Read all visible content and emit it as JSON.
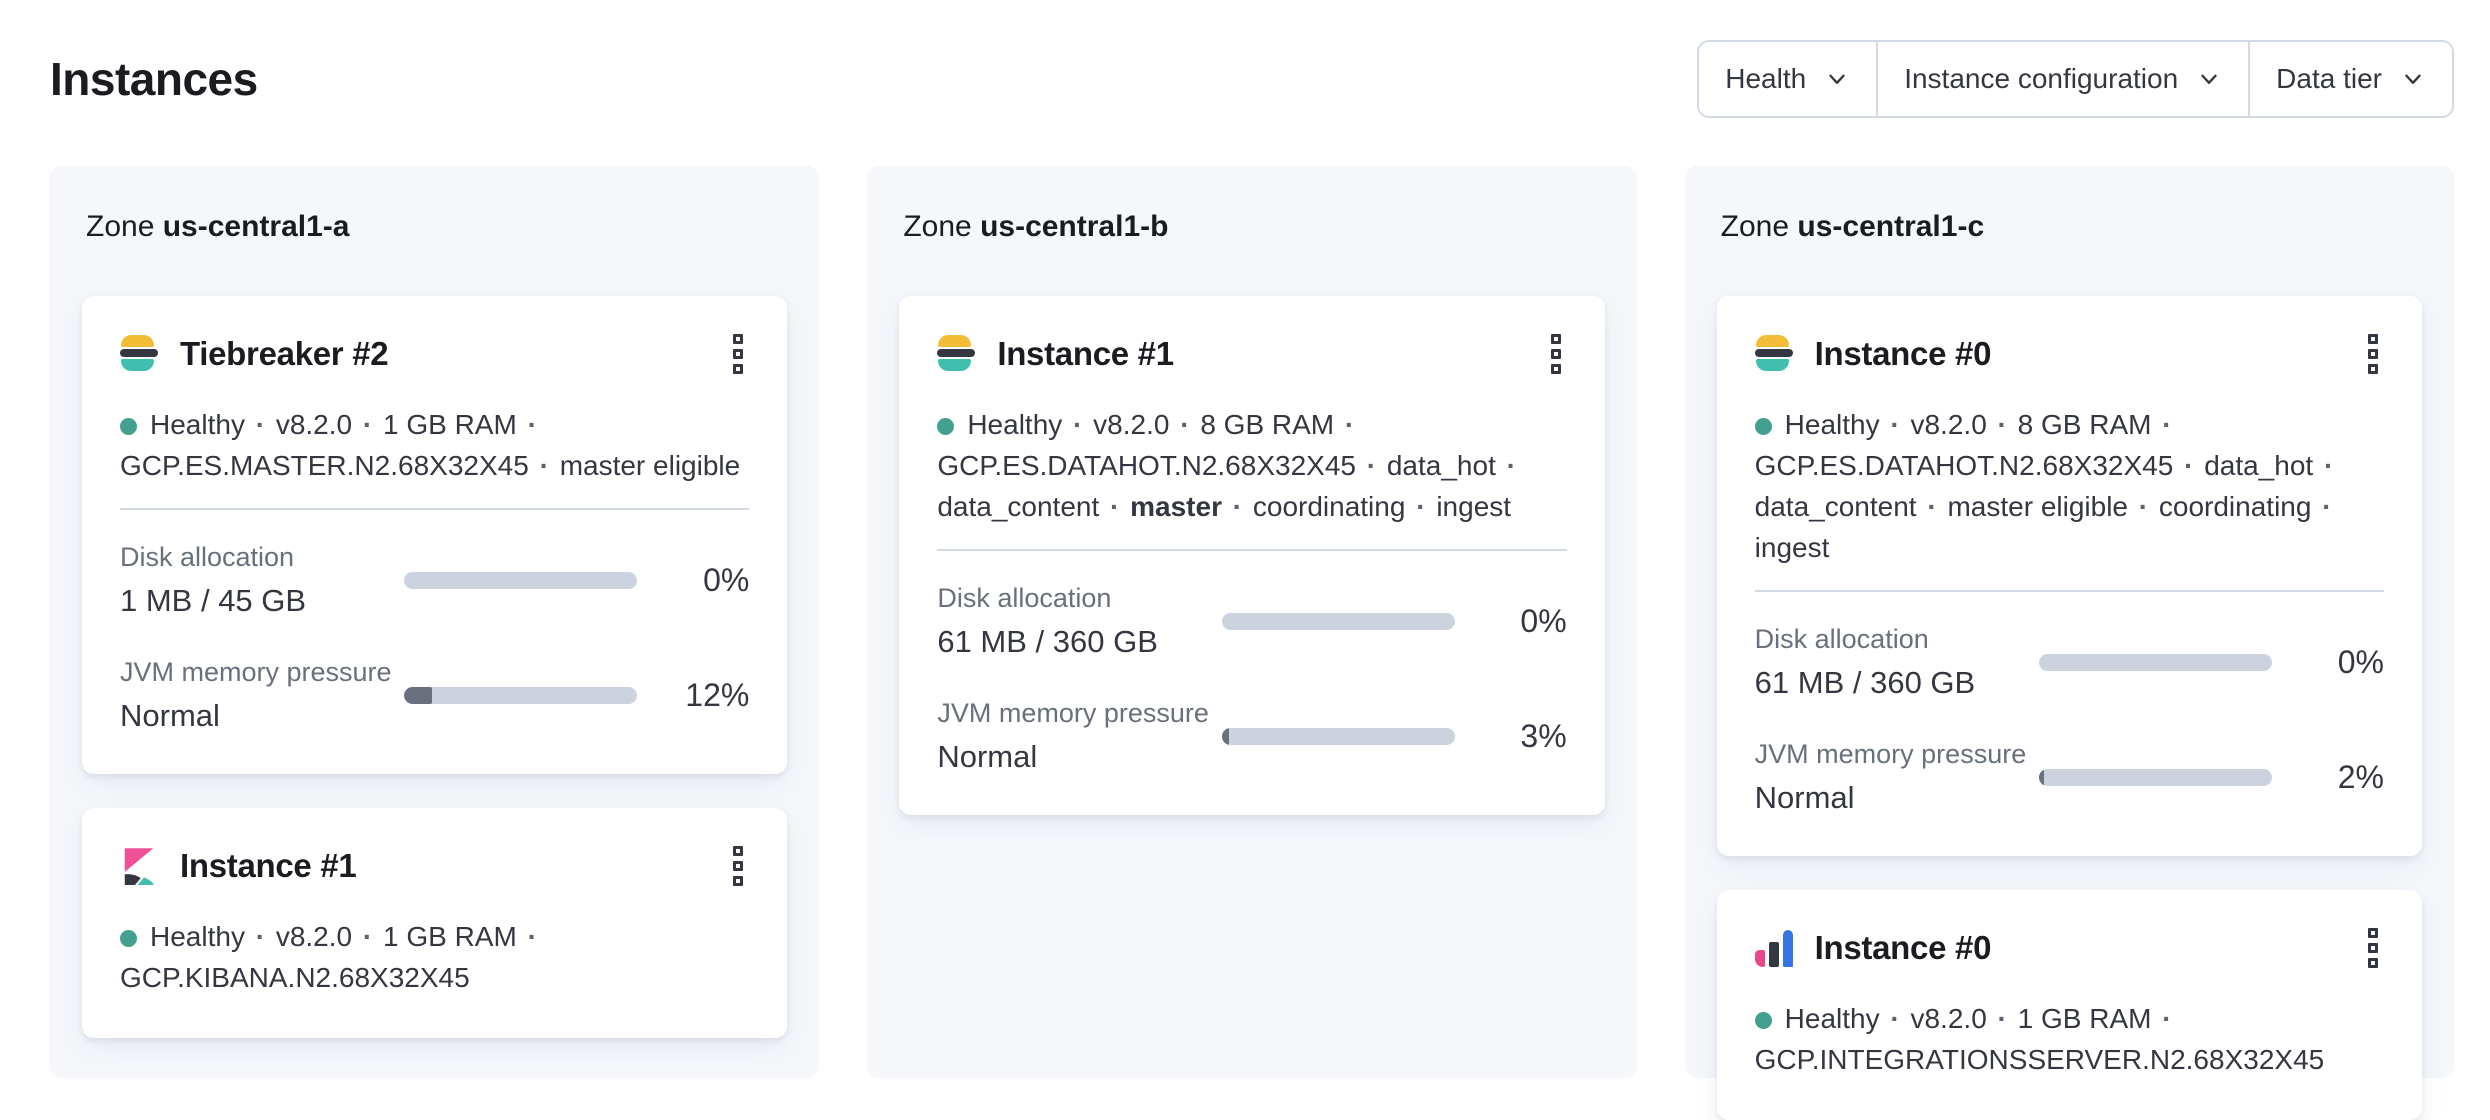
{
  "header": {
    "title": "Instances"
  },
  "filters": [
    {
      "id": "health",
      "label": "Health"
    },
    {
      "id": "instance-configuration",
      "label": "Instance configuration"
    },
    {
      "id": "data-tier",
      "label": "Data tier"
    }
  ],
  "ui": {
    "meta_separator": "·"
  },
  "zones": [
    {
      "label": "Zone",
      "name": "us-central1-a",
      "cards": [
        {
          "logo": "elasticsearch-logo",
          "title": "Tiebreaker #2",
          "health": "Healthy",
          "meta": [
            {
              "text": "Healthy"
            },
            {
              "text": "v8.2.0"
            },
            {
              "text": "1 GB RAM"
            },
            {
              "text": "GCP.ES.MASTER.N2.68X32X45"
            },
            {
              "text": "master eligible"
            }
          ],
          "metrics": [
            {
              "label": "Disk allocation",
              "value": "1 MB / 45 GB",
              "percent_label": "0%",
              "percent": 0
            },
            {
              "label": "JVM memory pressure",
              "value": "Normal",
              "percent_label": "12%",
              "percent": 12
            }
          ]
        },
        {
          "logo": "kibana-logo",
          "title": "Instance #1",
          "health": "Healthy",
          "meta": [
            {
              "text": "Healthy"
            },
            {
              "text": "v8.2.0"
            },
            {
              "text": "1 GB RAM"
            },
            {
              "text": "GCP.KIBANA.N2.68X32X45"
            }
          ],
          "metrics": []
        }
      ]
    },
    {
      "label": "Zone",
      "name": "us-central1-b",
      "cards": [
        {
          "logo": "elasticsearch-logo",
          "title": "Instance #1",
          "health": "Healthy",
          "meta": [
            {
              "text": "Healthy"
            },
            {
              "text": "v8.2.0"
            },
            {
              "text": "8 GB RAM"
            },
            {
              "text": "GCP.ES.DATAHOT.N2.68X32X45"
            },
            {
              "text": "data_hot"
            },
            {
              "text": "data_content"
            },
            {
              "text": "master",
              "bold": true
            },
            {
              "text": "coordinating"
            },
            {
              "text": "ingest"
            }
          ],
          "metrics": [
            {
              "label": "Disk allocation",
              "value": "61 MB / 360 GB",
              "percent_label": "0%",
              "percent": 0
            },
            {
              "label": "JVM memory pressure",
              "value": "Normal",
              "percent_label": "3%",
              "percent": 3
            }
          ]
        }
      ]
    },
    {
      "label": "Zone",
      "name": "us-central1-c",
      "cards": [
        {
          "logo": "elasticsearch-logo",
          "title": "Instance #0",
          "health": "Healthy",
          "meta": [
            {
              "text": "Healthy"
            },
            {
              "text": "v8.2.0"
            },
            {
              "text": "8 GB RAM"
            },
            {
              "text": "GCP.ES.DATAHOT.N2.68X32X45"
            },
            {
              "text": "data_hot"
            },
            {
              "text": "data_content"
            },
            {
              "text": "master eligible"
            },
            {
              "text": "coordinating"
            },
            {
              "text": "ingest"
            }
          ],
          "metrics": [
            {
              "label": "Disk allocation",
              "value": "61 MB / 360 GB",
              "percent_label": "0%",
              "percent": 0
            },
            {
              "label": "JVM memory pressure",
              "value": "Normal",
              "percent_label": "2%",
              "percent": 2
            }
          ]
        },
        {
          "logo": "integrations-server-logo",
          "title": "Instance #0",
          "health": "Healthy",
          "meta": [
            {
              "text": "Healthy"
            },
            {
              "text": "v8.2.0"
            },
            {
              "text": "1 GB RAM"
            },
            {
              "text": "GCP.INTEGRATIONSSERVER.N2.68X32X45"
            }
          ],
          "metrics": []
        }
      ]
    }
  ],
  "colors": {
    "health_dot": "#43a08e",
    "bar_track": "#ccd3df",
    "bar_fill": "#6a707d",
    "panel_bg": "#f5f7fb",
    "divider": "#d3dae6",
    "es_yellow": "#f4bd38",
    "es_teal": "#41bfae",
    "logo_dark": "#343741",
    "kibana_pink": "#ef5098",
    "int_pink": "#e8478b",
    "int_blue": "#3674e3"
  }
}
